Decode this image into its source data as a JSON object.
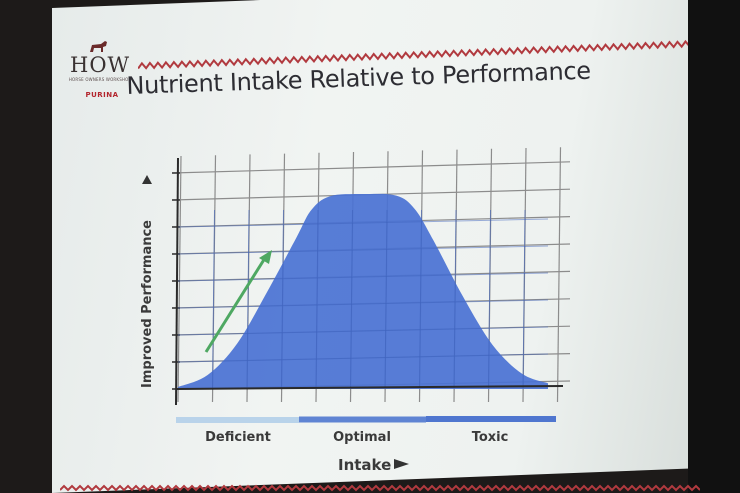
{
  "logo": {
    "title": "HOW",
    "tagline": "HORSE OWNERS WORKSHOP",
    "brand": "PURINA"
  },
  "slide": {
    "title": "Nutrient Intake Relative to Performance"
  },
  "chart_data": {
    "type": "area",
    "title": "Nutrient Intake Relative to Performance",
    "xlabel": "Intake",
    "ylabel": "Improved Performance",
    "x": [
      0,
      0.08,
      0.16,
      0.24,
      0.32,
      0.36,
      0.41,
      0.5,
      0.59,
      0.64,
      0.69,
      0.77,
      0.85,
      0.93,
      1.0
    ],
    "y": [
      0,
      0.06,
      0.22,
      0.48,
      0.76,
      0.9,
      0.97,
      0.98,
      0.97,
      0.9,
      0.74,
      0.45,
      0.2,
      0.05,
      0
    ],
    "xlim": [
      0,
      1
    ],
    "ylim": [
      0,
      1.35
    ],
    "grid": true,
    "zones": [
      {
        "label": "Deficient",
        "color": "#b9d3ea"
      },
      {
        "label": "Optimal",
        "color": "#5f84d3"
      },
      {
        "label": "Toxic",
        "color": "#4f76cf"
      }
    ],
    "annotation": {
      "type": "arrow",
      "color": "#4ea862",
      "meaning": "rising"
    }
  },
  "colors": {
    "fill": "#4a72d4",
    "grid": "#8a8a8a",
    "axis": "#2a2a2a",
    "accent": "#b3252d"
  }
}
